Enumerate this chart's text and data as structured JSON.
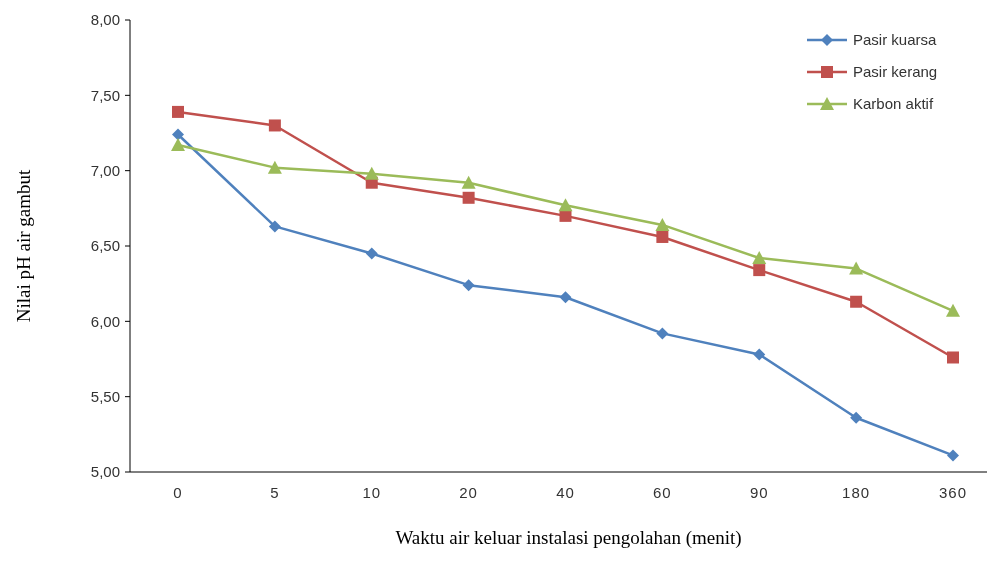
{
  "chart_data": {
    "type": "line",
    "xlabel": "Waktu air keluar instalasi pengolahan (menit)",
    "ylabel": "Nilai pH air gambut",
    "categories": [
      "0",
      "5",
      "10",
      "20",
      "40",
      "60",
      "90",
      "180",
      "360"
    ],
    "ylim": [
      5,
      8
    ],
    "yticks": [
      {
        "value": 5,
        "label": "5,00"
      },
      {
        "value": 5.5,
        "label": "5,50"
      },
      {
        "value": 6,
        "label": "6,00"
      },
      {
        "value": 6.5,
        "label": "6,50"
      },
      {
        "value": 7,
        "label": "7,00"
      },
      {
        "value": 7.5,
        "label": "7,50"
      },
      {
        "value": 8,
        "label": "8,00"
      }
    ],
    "grid": false,
    "legend": "top right",
    "line_style": "solid",
    "series": [
      {
        "name": "Pasir kuarsa",
        "color": "#4f81bd",
        "marker": "diamond",
        "values": [
          7.24,
          6.63,
          6.45,
          6.24,
          6.16,
          5.92,
          5.78,
          5.36,
          5.11
        ]
      },
      {
        "name": "Pasir kerang",
        "color": "#c0504d",
        "marker": "square",
        "values": [
          7.39,
          7.3,
          6.92,
          6.82,
          6.7,
          6.56,
          6.34,
          6.13,
          5.76
        ]
      },
      {
        "name": "Karbon aktif",
        "color": "#9bbb59",
        "marker": "triangle",
        "values": [
          7.17,
          7.02,
          6.98,
          6.92,
          6.77,
          6.64,
          6.42,
          6.35,
          6.07
        ]
      }
    ]
  }
}
